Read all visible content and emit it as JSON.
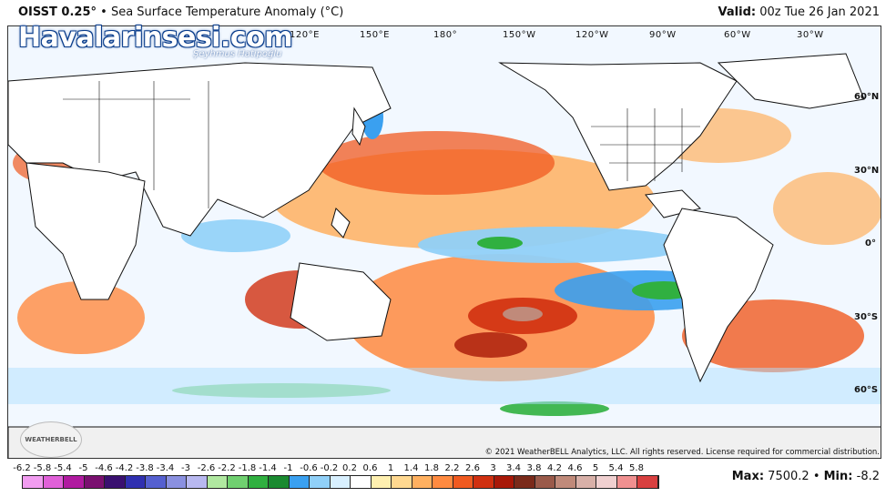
{
  "header": {
    "product": "OISST 0.25°",
    "separator": "•",
    "description": "Sea Surface Temperature Anomaly (°C)",
    "valid_label": "Valid:",
    "valid_value": "00z Tue 26 Jan 2021"
  },
  "watermark": {
    "text": "Havalarinsesi.com",
    "subtext": "Şeyhmus Hatipoğlu"
  },
  "longitude_labels": [
    "120°E",
    "150°E",
    "180°",
    "150°W",
    "120°W",
    "90°W",
    "60°W",
    "30°W"
  ],
  "latitude_labels": [
    "60°N",
    "30°N",
    "0°",
    "30°S",
    "60°S"
  ],
  "logo": {
    "text": "WEATHERBELL"
  },
  "copyright": "© 2021 WeatherBELL Analytics, LLC. All rights reserved. License required for commercial distribution.",
  "scale": {
    "ticks": [
      "-6.2",
      "-5.8",
      "-5.4",
      "-5",
      "-4.6",
      "-4.2",
      "-3.8",
      "-3.4",
      "-3",
      "-2.6",
      "-2.2",
      "-1.8",
      "-1.4",
      "-1",
      "-0.6",
      "-0.2",
      "0.2",
      "0.6",
      "1",
      "1.4",
      "1.8",
      "2.2",
      "2.6",
      "3",
      "3.4",
      "3.8",
      "4.2",
      "4.6",
      "5",
      "5.4",
      "5.8"
    ],
    "colors": [
      "#f19cf0",
      "#e060d8",
      "#b01aa0",
      "#7a1070",
      "#3a1070",
      "#3030b0",
      "#5560d0",
      "#8a90e0",
      "#b8b8f0",
      "#b0e8a0",
      "#70d070",
      "#30b040",
      "#1a8a30",
      "#3aa0f0",
      "#90d0f8",
      "#d8f0ff",
      "#ffffff",
      "#fff0b0",
      "#ffd890",
      "#ffb060",
      "#ff8a40",
      "#f05a20",
      "#d03010",
      "#a81808",
      "#7a2a1a",
      "#9a5a4a",
      "#c08a7a",
      "#d8b0a8",
      "#f0d0d0",
      "#f09090",
      "#d84040"
    ]
  },
  "stats": {
    "max_label": "Max:",
    "max_value": "7500.2",
    "separator": "•",
    "min_label": "Min:",
    "min_value": "-8.2"
  }
}
